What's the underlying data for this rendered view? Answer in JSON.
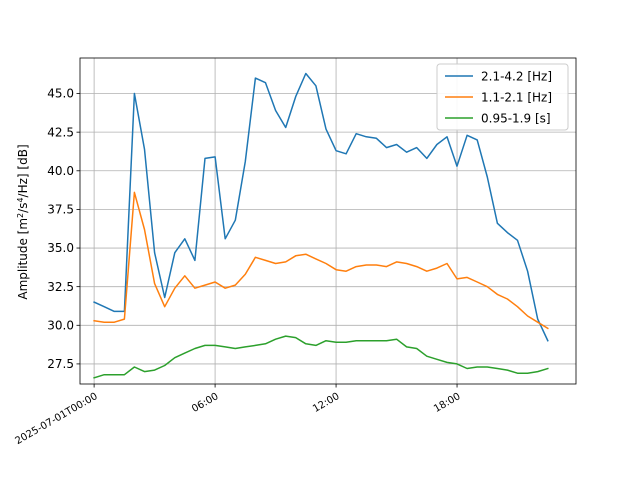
{
  "chart_data": {
    "type": "line",
    "ylabel_parts": {
      "prefix": "Amplitude [m",
      "sup1": "2",
      "mid1": "/s",
      "sup2": "4",
      "mid2": "/Hz] [dB]"
    },
    "ylim": [
      26.2,
      47.3
    ],
    "yticks": [
      27.5,
      30.0,
      32.5,
      35.0,
      37.5,
      40.0,
      42.5,
      45.0
    ],
    "ytick_labels": [
      "27.5",
      "30.0",
      "32.5",
      "35.0",
      "37.5",
      "40.0",
      "42.5",
      "45.0"
    ],
    "xlim": [
      -0.7,
      23.9
    ],
    "xticks": [
      0,
      6,
      12,
      18
    ],
    "xtick_labels": [
      "2025-07-01T00:00",
      "06:00",
      "12:00",
      "18:00"
    ],
    "grid": true,
    "legend_position": "top-right",
    "x": [
      0,
      0.5,
      1,
      1.5,
      2,
      2.5,
      3,
      3.5,
      4,
      4.5,
      5,
      5.5,
      6,
      6.5,
      7,
      7.5,
      8,
      8.5,
      9,
      9.5,
      10,
      10.5,
      11,
      11.5,
      12,
      12.5,
      13,
      13.5,
      14,
      14.5,
      15,
      15.5,
      16,
      16.5,
      17,
      17.5,
      18,
      18.5,
      19,
      19.5,
      20,
      20.5,
      21,
      21.5,
      22,
      22.5
    ],
    "series": [
      {
        "name": "2.1-4.2 [Hz]",
        "color": "#1f77b4",
        "values": [
          31.5,
          31.2,
          30.9,
          30.9,
          45.0,
          41.4,
          34.7,
          31.8,
          34.7,
          35.6,
          34.2,
          40.8,
          40.9,
          35.6,
          36.8,
          40.6,
          46.0,
          45.7,
          43.9,
          42.8,
          44.8,
          46.3,
          45.5,
          42.7,
          41.3,
          41.1,
          42.4,
          42.2,
          42.1,
          41.5,
          41.7,
          41.2,
          41.5,
          40.8,
          41.7,
          42.2,
          40.3,
          42.3,
          42.0,
          39.6,
          36.6,
          36.0,
          35.5,
          33.5,
          30.4,
          29.0
        ]
      },
      {
        "name": "1.1-2.1 [Hz]",
        "color": "#ff7f0e",
        "values": [
          30.3,
          30.2,
          30.2,
          30.4,
          38.6,
          36.2,
          32.7,
          31.2,
          32.4,
          33.2,
          32.4,
          32.6,
          32.8,
          32.4,
          32.6,
          33.3,
          34.4,
          34.2,
          34.0,
          34.1,
          34.5,
          34.6,
          34.3,
          34.0,
          33.6,
          33.5,
          33.8,
          33.9,
          33.9,
          33.8,
          34.1,
          34.0,
          33.8,
          33.5,
          33.7,
          34.0,
          33.0,
          33.1,
          32.8,
          32.5,
          32.0,
          31.7,
          31.2,
          30.6,
          30.2,
          29.8
        ]
      },
      {
        "name": "0.95-1.9 [s]",
        "color": "#2ca02c",
        "values": [
          26.6,
          26.8,
          26.8,
          26.8,
          27.3,
          27.0,
          27.1,
          27.4,
          27.9,
          28.2,
          28.5,
          28.7,
          28.7,
          28.6,
          28.5,
          28.6,
          28.7,
          28.8,
          29.1,
          29.3,
          29.2,
          28.8,
          28.7,
          29.0,
          28.9,
          28.9,
          29.0,
          29.0,
          29.0,
          29.0,
          29.1,
          28.6,
          28.5,
          28.0,
          27.8,
          27.6,
          27.5,
          27.2,
          27.3,
          27.3,
          27.2,
          27.1,
          26.9,
          26.9,
          27.0,
          27.2
        ]
      }
    ]
  }
}
